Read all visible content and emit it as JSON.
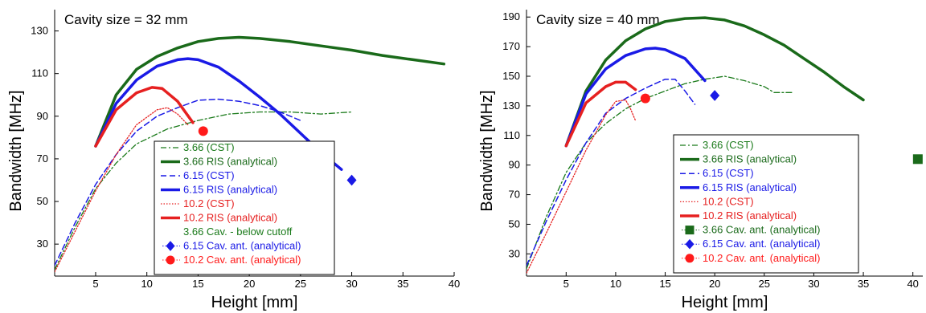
{
  "chart_data": [
    {
      "type": "line",
      "title": "Cavity size = 32 mm",
      "xlabel": "Height [mm]",
      "ylabel": "Bandwidth [MHz]",
      "xlim": [
        1,
        40
      ],
      "ylim": [
        15,
        140
      ],
      "xticks": [
        5,
        10,
        15,
        20,
        25,
        30,
        35,
        40
      ],
      "yticks": [
        30,
        50,
        70,
        90,
        110,
        130
      ],
      "legend_position": "bottom-right",
      "series": [
        {
          "name": "3.66 (CST)",
          "color": "#1a7a1a",
          "style": "dashdot",
          "width": 1.3,
          "x": [
            1,
            3,
            5,
            7,
            9,
            12,
            15,
            18,
            21,
            24,
            27,
            30
          ],
          "y": [
            18,
            38,
            56,
            68,
            77,
            84,
            88,
            91,
            92,
            92,
            91,
            92
          ]
        },
        {
          "name": "3.66 RIS (analytical)",
          "color": "#1a6a1a",
          "style": "solid",
          "width": 3.5,
          "x": [
            5,
            7,
            9,
            11,
            13,
            15,
            17,
            19,
            21,
            24,
            27,
            30,
            33,
            36,
            39
          ],
          "y": [
            76,
            100,
            112,
            118,
            122,
            125,
            126.5,
            127,
            126.5,
            125,
            123,
            121,
            118.5,
            116.5,
            114.5
          ]
        },
        {
          "name": "6.15 (CST)",
          "color": "#1a1ae6",
          "style": "dashed",
          "width": 1.5,
          "x": [
            1,
            3,
            5,
            7,
            9,
            11,
            13,
            15,
            17,
            19,
            21,
            23,
            25
          ],
          "y": [
            20,
            40,
            58,
            72,
            83,
            90,
            94,
            97.5,
            98,
            97,
            95,
            92,
            88
          ]
        },
        {
          "name": "6.15 RIS (analytical)",
          "color": "#1a1ae6",
          "style": "solid",
          "width": 3.5,
          "x": [
            5,
            7,
            9,
            11,
            13,
            14,
            15,
            17,
            19,
            21,
            23,
            25,
            27,
            29
          ],
          "y": [
            76,
            96,
            107,
            113.5,
            116.5,
            117,
            116.5,
            113,
            106.5,
            99,
            91,
            82,
            73,
            65
          ]
        },
        {
          "name": "10.2 (CST)",
          "color": "#e62020",
          "style": "dotted",
          "width": 1.3,
          "x": [
            1,
            3,
            5,
            7,
            9,
            11,
            12,
            13,
            14
          ],
          "y": [
            17,
            36,
            55,
            72,
            86,
            93,
            94,
            91,
            86
          ]
        },
        {
          "name": "10.2 RIS (analytical)",
          "color": "#e62020",
          "style": "solid",
          "width": 3.5,
          "x": [
            5,
            7,
            9,
            10.5,
            11.5,
            13,
            14.5
          ],
          "y": [
            76,
            93,
            101,
            103.5,
            103,
            97,
            87
          ]
        },
        {
          "name": "3.66 Cav. - below cutoff",
          "color": "#1a7a1a",
          "style": "none",
          "x": [],
          "y": []
        },
        {
          "name": "6.15 Cav. ant. (analytical)",
          "color": "#1a1ae6",
          "style": "marker",
          "marker": "diamond",
          "x": [
            30
          ],
          "y": [
            60
          ]
        },
        {
          "name": "10.2 Cav. ant. (analytical)",
          "color": "#ff1a1a",
          "style": "marker",
          "marker": "circle",
          "x": [
            15.5
          ],
          "y": [
            83
          ]
        }
      ]
    },
    {
      "type": "line",
      "title": "Cavity size = 40 mm",
      "xlabel": "Height [mm]",
      "ylabel": "Bandwidth [MHz]",
      "xlim": [
        1,
        41
      ],
      "ylim": [
        15,
        195
      ],
      "xticks": [
        5,
        10,
        15,
        20,
        25,
        30,
        35,
        40
      ],
      "yticks": [
        30,
        50,
        70,
        90,
        110,
        130,
        150,
        170,
        190
      ],
      "legend_position": "bottom-right",
      "series": [
        {
          "name": "3.66 (CST)",
          "color": "#1a7a1a",
          "style": "dashdot",
          "width": 1.3,
          "x": [
            1,
            3,
            5,
            7,
            9,
            11,
            13,
            15,
            17,
            19,
            21,
            23,
            25,
            26,
            28
          ],
          "y": [
            20,
            55,
            85,
            105,
            118,
            128,
            135,
            140,
            145,
            148,
            150,
            147,
            143,
            139,
            139
          ]
        },
        {
          "name": "3.66 RIS (analytical)",
          "color": "#1a6a1a",
          "style": "solid",
          "width": 3.5,
          "x": [
            5,
            7,
            9,
            11,
            13,
            15,
            17,
            19,
            21,
            23,
            25,
            27,
            29,
            31,
            33,
            35
          ],
          "y": [
            103,
            140,
            161,
            174,
            182,
            187,
            189,
            189.5,
            188,
            184,
            178,
            171,
            162,
            153,
            143,
            134
          ]
        },
        {
          "name": "6.15 (CST)",
          "color": "#1a1ae6",
          "style": "dashed",
          "width": 1.5,
          "x": [
            1,
            3,
            5,
            7,
            9,
            11,
            13,
            15,
            16,
            17,
            18
          ],
          "y": [
            22,
            52,
            80,
            105,
            125,
            135,
            142,
            148,
            148,
            140,
            131
          ]
        },
        {
          "name": "6.15 RIS (analytical)",
          "color": "#1a1ae6",
          "style": "solid",
          "width": 3.5,
          "x": [
            5,
            7,
            9,
            11,
            13,
            14,
            15,
            17,
            19
          ],
          "y": [
            103,
            138,
            155,
            164,
            168.5,
            169,
            168,
            162,
            147
          ]
        },
        {
          "name": "10.2 (CST)",
          "color": "#e62020",
          "style": "dotted",
          "width": 1.3,
          "x": [
            1,
            3,
            5,
            7,
            9,
            10,
            11,
            11.5,
            12
          ],
          "y": [
            17,
            44,
            72,
            100,
            124,
            133,
            134,
            128,
            120
          ]
        },
        {
          "name": "10.2 RIS (analytical)",
          "color": "#e62020",
          "style": "solid",
          "width": 3.5,
          "x": [
            5,
            7,
            9,
            10,
            11,
            12
          ],
          "y": [
            103,
            132,
            143,
            146,
            146,
            141
          ]
        },
        {
          "name": "3.66 Cav. ant. (analytical)",
          "color": "#1a6a1a",
          "style": "marker",
          "marker": "square",
          "x": [
            40.5
          ],
          "y": [
            94
          ]
        },
        {
          "name": "6.15 Cav. ant. (analytical)",
          "color": "#1a1ae6",
          "style": "marker",
          "marker": "diamond",
          "x": [
            20
          ],
          "y": [
            137
          ]
        },
        {
          "name": "10.2 Cav. ant. (analytical)",
          "color": "#ff1a1a",
          "style": "marker",
          "marker": "circle",
          "x": [
            13
          ],
          "y": [
            135
          ]
        }
      ]
    }
  ]
}
